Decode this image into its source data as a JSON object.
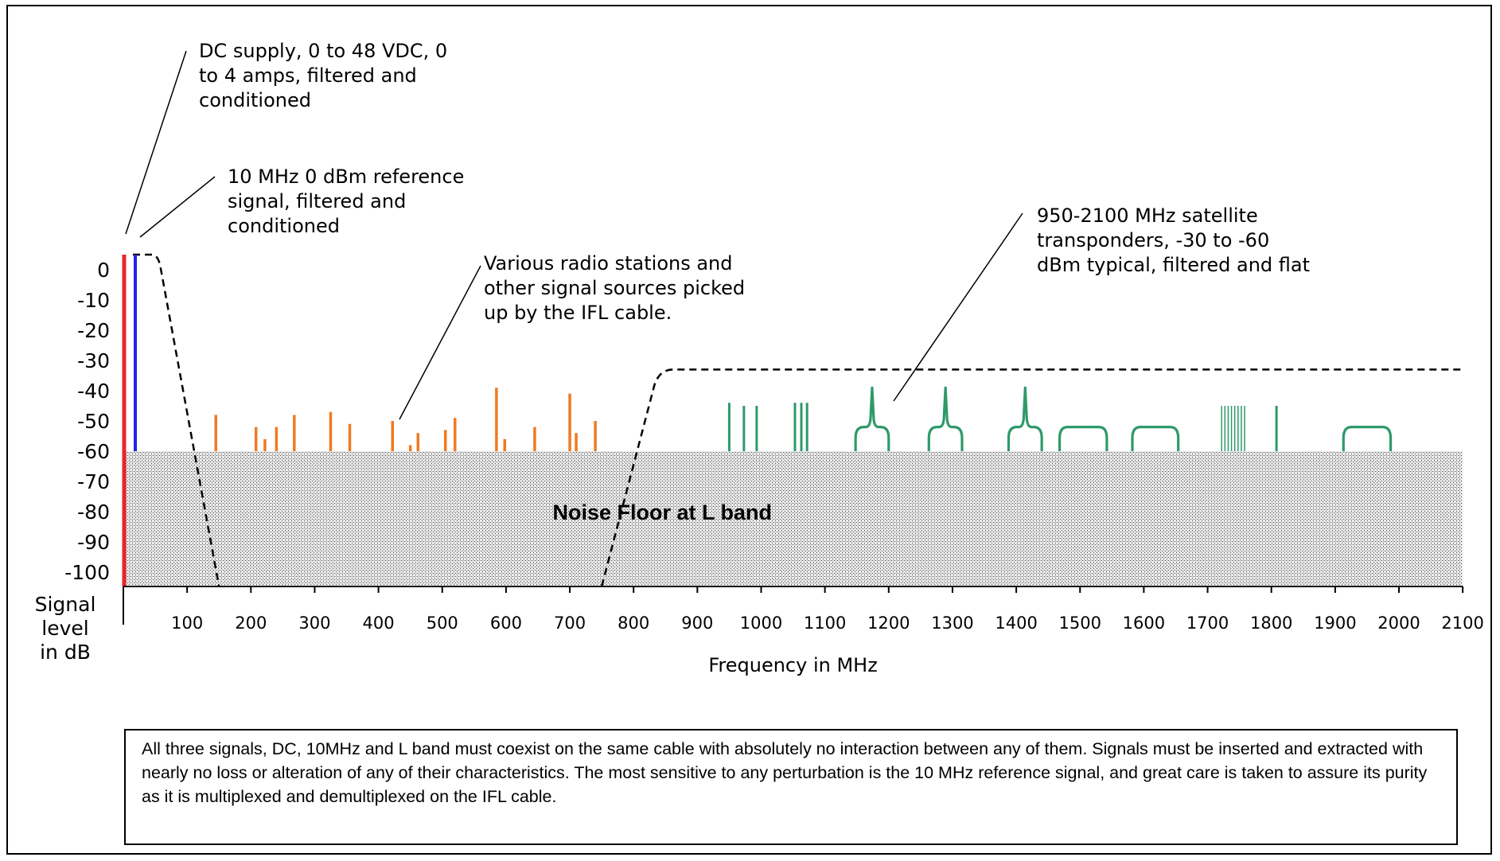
{
  "x_axis": {
    "label": "Frequency in MHz",
    "ticks": [
      "100",
      "200",
      "300",
      "400",
      "500",
      "600",
      "700",
      "800",
      "900",
      "1000",
      "1100",
      "1200",
      "1300",
      "1400",
      "1500",
      "1600",
      "1700",
      "1800",
      "1900",
      "2000",
      "2100"
    ]
  },
  "y_axis": {
    "label": [
      "Signal",
      "level",
      "in dB"
    ],
    "ticks": [
      "0",
      "-10",
      "-20",
      "-30",
      "-40",
      "-50",
      "-60",
      "-70",
      "-80",
      "-90",
      "-100"
    ]
  },
  "noise_floor_label": "Noise Floor at L band",
  "annotations": {
    "dc": [
      "DC supply, 0 to 48 VDC, 0",
      "to 4 amps, filtered and",
      "conditioned"
    ],
    "ref": [
      "10 MHz 0 dBm reference",
      "signal, filtered and",
      "conditioned"
    ],
    "radio": [
      "Various radio stations and",
      "other signal sources picked",
      "up by the IFL cable."
    ],
    "sat": [
      "950-2100 MHz satellite",
      "transponders, -30 to -60",
      "dBm typical, filtered and flat"
    ]
  },
  "note": "All three signals, DC, 10MHz and L band must coexist on the same cable with absolutely no interaction between any of them. Signals must be inserted and extracted with nearly no loss or alteration of any of their characteristics. The most sensitive to any perturbation is the 10 MHz reference signal, and great care is taken to assure its purity as it is multiplexed and demultiplexed on the IFL cable.",
  "colors": {
    "dc": "#e8262b",
    "ref": "#1f25e0",
    "radio": "#f07a22",
    "sat": "#2e9a6a",
    "filter": "#000000"
  },
  "chart_data": {
    "type": "spectrum",
    "x_range": [
      0,
      2100
    ],
    "y_range": [
      -100,
      0
    ],
    "noise_floor_db": -60,
    "dc_signal": {
      "freq": 0,
      "level_db": 5
    },
    "ref_signal": {
      "freq": 10,
      "level_db": 5
    },
    "radio_signals": [
      {
        "freq": 145,
        "db": -48
      },
      {
        "freq": 208,
        "db": -52
      },
      {
        "freq": 222,
        "db": -56
      },
      {
        "freq": 240,
        "db": -52
      },
      {
        "freq": 268,
        "db": -48
      },
      {
        "freq": 325,
        "db": -47
      },
      {
        "freq": 355,
        "db": -51
      },
      {
        "freq": 422,
        "db": -50
      },
      {
        "freq": 450,
        "db": -58
      },
      {
        "freq": 462,
        "db": -54
      },
      {
        "freq": 505,
        "db": -53
      },
      {
        "freq": 520,
        "db": -49
      },
      {
        "freq": 585,
        "db": -39
      },
      {
        "freq": 598,
        "db": -56
      },
      {
        "freq": 645,
        "db": -52
      },
      {
        "freq": 700,
        "db": -41
      },
      {
        "freq": 710,
        "db": -54
      },
      {
        "freq": 740,
        "db": -50
      }
    ],
    "sat_carriers": [
      {
        "freq": 950,
        "db": -44
      },
      {
        "freq": 973,
        "db": -45
      },
      {
        "freq": 993,
        "db": -45
      },
      {
        "freq": 1053,
        "db": -44
      },
      {
        "freq": 1063,
        "db": -44
      },
      {
        "freq": 1072,
        "db": -44
      },
      {
        "freq": 1808,
        "db": -45
      }
    ],
    "sat_cluster": {
      "from": 1722,
      "to": 1758,
      "count": 8,
      "db": -45
    },
    "transponders": [
      {
        "from": 1148,
        "to": 1200,
        "peak": true
      },
      {
        "from": 1263,
        "to": 1315,
        "peak": true
      },
      {
        "from": 1388,
        "to": 1440,
        "peak": true
      },
      {
        "from": 1468,
        "to": 1542,
        "peak": false
      },
      {
        "from": 1582,
        "to": 1654,
        "peak": false
      },
      {
        "from": 1913,
        "to": 1987,
        "peak": false
      }
    ],
    "lowpass_filter": {
      "passband_db": 5,
      "corner_mhz": 55,
      "stop_mhz": 150
    },
    "lband_filter": {
      "passband_db": -33,
      "start_mhz": 750,
      "corner_mhz": 840
    }
  }
}
